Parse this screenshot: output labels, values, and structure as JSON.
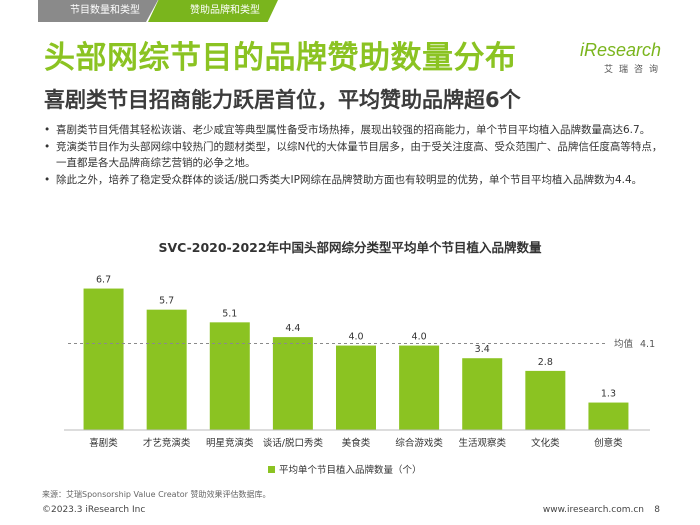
{
  "tabs": [
    "节目数量和类型",
    "赞助品牌和类型"
  ],
  "title": "头部网综节目的品牌赞助数量分布",
  "subtitle": "喜剧类节目招商能力跃居首位，平均赞助品牌超6个",
  "logo": {
    "word": "iResearch",
    "sub": "艾瑞咨询"
  },
  "bullets": [
    "喜剧类节目凭借其轻松诙谐、老少咸宜等典型属性备受市场热捧，展现出较强的招商能力，单个节目平均植入品牌数量高达6.7。",
    "竞演类节目作为头部网综中较热门的题材类型，以综N代的大体量节目居多，由于受关注度高、受众范围广、品牌信任度高等特点，一直都是各大品牌商综艺营销的必争之地。",
    "除此之外，培养了稳定受众群体的谈话/脱口秀类大IP网综在品牌赞助方面也有较明显的优势，单个节目平均植入品牌数为4.4。"
  ],
  "chart_data": {
    "type": "bar",
    "title": "SVC-2020-2022年中国头部网综分类型平均单个节目植入品牌数量",
    "categories": [
      "喜剧类",
      "才艺竞演类",
      "明星竞演类",
      "谈话/脱口秀类",
      "美食类",
      "综合游戏类",
      "生活观察类",
      "文化类",
      "创意类"
    ],
    "values": [
      6.7,
      5.7,
      5.1,
      4.4,
      4.0,
      4.0,
      3.4,
      2.8,
      1.3
    ],
    "value_labels": [
      "6.7",
      "5.7",
      "5.1",
      "4.4",
      "4.0",
      "4.0",
      "3.4",
      "2.8",
      "1.3"
    ],
    "average": {
      "label": "均值",
      "value": 4.1,
      "value_label": "4.1"
    },
    "legend": "平均单个节目植入品牌数量（个）",
    "ylim": [
      0,
      7.2
    ],
    "bar_color": "#8bc322"
  },
  "source": "来源：艾瑞Sponsorship Value Creator 赞助效果评估数据库。",
  "footer": {
    "copyright": "©2023.3 iResearch Inc",
    "site": "www.iresearch.com.cn",
    "page": "8"
  }
}
